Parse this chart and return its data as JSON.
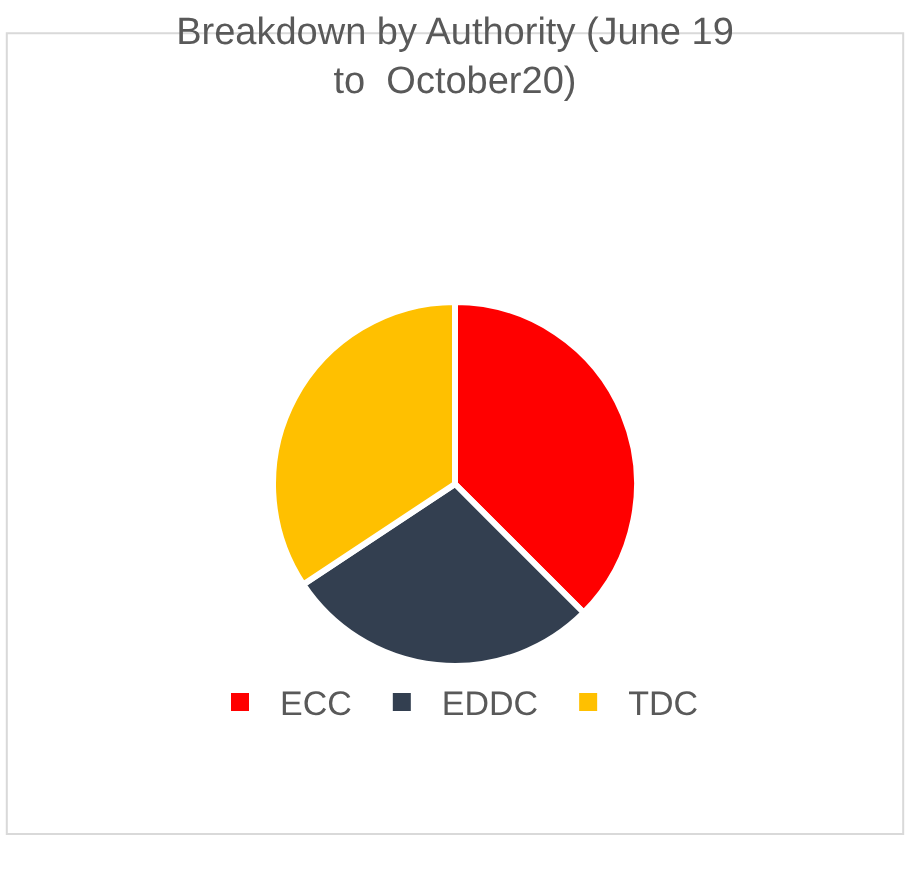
{
  "chart_data": {
    "type": "pie",
    "title": "Breakdown by Authority (June 19 to  October20)",
    "categories": [
      "ECC",
      "EDDC",
      "TDC"
    ],
    "values": [
      37.5,
      28.2,
      34.3
    ],
    "colors": [
      "#ff0000",
      "#333f50",
      "#ffc000"
    ],
    "legend": "bottom"
  }
}
